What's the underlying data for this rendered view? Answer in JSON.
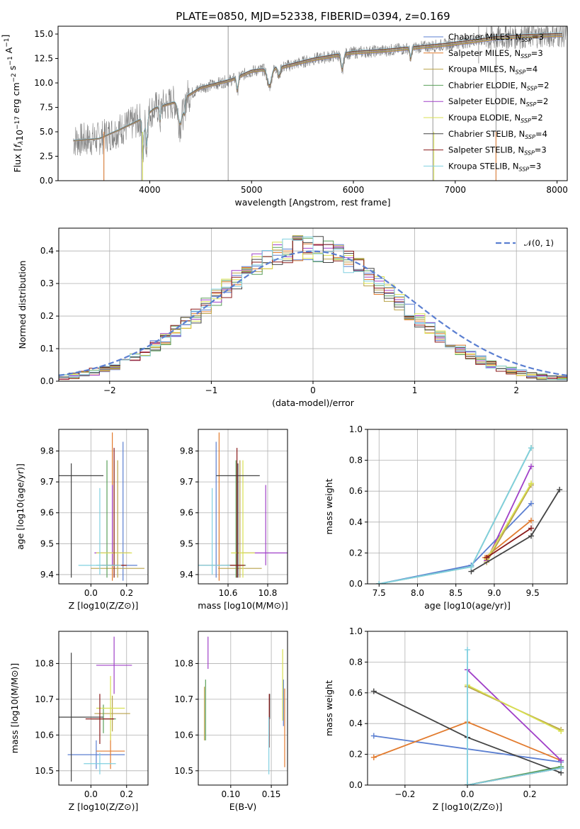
{
  "figure": {
    "title": "PLATE=0850, MJD=52338, FIBERID=0394, z=0.169"
  },
  "palette": [
    {
      "name": "Chabrier MILES",
      "nssp": "3",
      "color": "#5b7fd1"
    },
    {
      "name": "Salpeter MILES",
      "nssp": "3",
      "color": "#e27b2e"
    },
    {
      "name": "Kroupa MILES",
      "nssp": "4",
      "color": "#b9a24a"
    },
    {
      "name": "Chabrier ELODIE",
      "nssp": "2",
      "color": "#5aa05a"
    },
    {
      "name": "Salpeter ELODIE",
      "nssp": "2",
      "color": "#a040c8"
    },
    {
      "name": "Kroupa ELODIE",
      "nssp": "2",
      "color": "#d8e050"
    },
    {
      "name": "Chabrier STELIB",
      "nssp": "4",
      "color": "#444444"
    },
    {
      "name": "Salpeter STELIB",
      "nssp": "3",
      "color": "#8a1a1a"
    },
    {
      "name": "Kroupa STELIB",
      "nssp": "3",
      "color": "#80d0e0"
    }
  ],
  "chart_data": [
    {
      "id": "spectrum",
      "type": "line",
      "xlabel": "wavelength [Angstrom, rest frame]",
      "ylabel": "Flux [f_λ 10^-17 erg cm^-2 s^-1 A^-1]",
      "xlim": [
        3100,
        8100
      ],
      "ylim": [
        0,
        15.8
      ],
      "xticks": [
        4000,
        5000,
        6000,
        7000,
        8000
      ],
      "yticks": [
        "0.0",
        "2.5",
        "5.0",
        "7.5",
        "10.0",
        "12.5",
        "15.0"
      ],
      "grid": false,
      "legend_position": "top-right",
      "legend": [
        "Chabrier MILES, N_SSP=3",
        "Salpeter MILES, N_SSP=3",
        "Kroupa MILES, N_SSP=4",
        "Chabrier ELODIE, N_SSP=2",
        "Salpeter ELODIE, N_SSP=2",
        "Kroupa ELODIE, N_SSP=2",
        "Chabrier STELIB, N_SSP=4",
        "Salpeter STELIB, N_SSP=3",
        "Kroupa STELIB, N_SSP=3"
      ],
      "continuum": [
        [
          3250,
          4.1
        ],
        [
          3500,
          4.3
        ],
        [
          3700,
          5.2
        ],
        [
          3900,
          6.2
        ],
        [
          4050,
          7.4
        ],
        [
          4300,
          8.2
        ],
        [
          4500,
          9.5
        ],
        [
          4800,
          10.3
        ],
        [
          5000,
          11.2
        ],
        [
          5300,
          11.6
        ],
        [
          5600,
          12.4
        ],
        [
          6000,
          13.1
        ],
        [
          6300,
          13.3
        ],
        [
          6600,
          13.6
        ],
        [
          6900,
          13.9
        ],
        [
          7200,
          14.3
        ],
        [
          7400,
          14.6
        ],
        [
          7700,
          14.8
        ],
        [
          8000,
          14.9
        ]
      ]
    },
    {
      "id": "residuals",
      "type": "histogram",
      "xlabel": "(data-model)/error",
      "ylabel": "Normed distribution",
      "xlim": [
        -2.5,
        2.5
      ],
      "ylim": [
        0,
        0.47
      ],
      "xticks": [
        "−2",
        "−1",
        "0",
        "1",
        "2"
      ],
      "yticks": [
        "0.0",
        "0.1",
        "0.2",
        "0.3",
        "0.4"
      ],
      "grid": true,
      "legend_position": "top-right",
      "reference_curve": "𝒩(0, 1)",
      "bin_width": 0.1,
      "bins_left_edge": -2.5
    },
    {
      "id": "age-vs-Z",
      "type": "scatter",
      "xlabel": "Z [log10(Z/Z⊙)]",
      "ylabel": "age  [log10(age/yr)]",
      "xlim": [
        -0.18,
        0.32
      ],
      "ylim": [
        9.37,
        9.87
      ],
      "xticks": [
        "0.0",
        "0.2"
      ],
      "yticks": [
        "9.4",
        "9.5",
        "9.6",
        "9.7",
        "9.8"
      ],
      "grid": true,
      "points": [
        {
          "x": 0.18,
          "y": 9.43,
          "xerr": 0.08,
          "yerr": [
            0.05,
            0.4
          ]
        },
        {
          "x": 0.12,
          "y": 9.43,
          "xerr": 0.07,
          "yerr": [
            0.05,
            0.43
          ]
        },
        {
          "x": 0.15,
          "y": 9.42,
          "xerr": 0.15,
          "yerr": [
            0.03,
            0.35
          ]
        },
        {
          "x": 0.09,
          "y": 9.43,
          "xerr": 0.06,
          "yerr": [
            0.04,
            0.34
          ]
        },
        {
          "x": 0.12,
          "y": 9.47,
          "xerr": 0.1,
          "yerr": [
            0.04,
            0.22
          ]
        },
        {
          "x": 0.13,
          "y": 9.47,
          "xerr": 0.1,
          "yerr": [
            0.08,
            0.3
          ]
        },
        {
          "x": -0.11,
          "y": 9.72,
          "xerr": 0.18,
          "yerr": [
            0.33,
            0.04
          ]
        },
        {
          "x": 0.13,
          "y": 9.43,
          "xerr": 0.07,
          "yerr": [
            0.04,
            0.38
          ]
        },
        {
          "x": 0.05,
          "y": 9.43,
          "xerr": 0.12,
          "yerr": [
            0.03,
            0.25
          ]
        }
      ]
    },
    {
      "id": "age-vs-mass",
      "type": "scatter",
      "xlabel": "mass [log10(M/M⊙)]",
      "ylabel": "",
      "xlim": [
        10.45,
        10.9
      ],
      "ylim": [
        9.37,
        9.87
      ],
      "xticks": [
        "10.6",
        "10.8"
      ],
      "yticks": [
        "9.4",
        "9.5",
        "9.6",
        "9.7",
        "9.8"
      ],
      "grid": true,
      "points": [
        {
          "x": 10.54,
          "y": 9.43,
          "xerr": 0.09,
          "yerr": [
            0.04,
            0.4
          ]
        },
        {
          "x": 10.555,
          "y": 9.43,
          "xerr": 0.1,
          "yerr": [
            0.05,
            0.43
          ]
        },
        {
          "x": 10.66,
          "y": 9.42,
          "xerr": 0.11,
          "yerr": [
            0.03,
            0.35
          ]
        },
        {
          "x": 10.64,
          "y": 9.43,
          "xerr": 0.05,
          "yerr": [
            0.04,
            0.34
          ]
        },
        {
          "x": 10.79,
          "y": 9.47,
          "xerr": 0.12,
          "yerr": [
            0.04,
            0.22
          ]
        },
        {
          "x": 10.675,
          "y": 9.47,
          "xerr": 0.06,
          "yerr": [
            0.08,
            0.3
          ]
        },
        {
          "x": 10.65,
          "y": 9.72,
          "xerr": 0.11,
          "yerr": [
            0.33,
            0.04
          ]
        },
        {
          "x": 10.645,
          "y": 9.43,
          "xerr": 0.04,
          "yerr": [
            0.04,
            0.38
          ]
        },
        {
          "x": 10.52,
          "y": 9.43,
          "xerr": 0.09,
          "yerr": [
            0.03,
            0.25
          ]
        }
      ]
    },
    {
      "id": "weight-vs-age",
      "type": "line",
      "xlabel": "age  [log10(age/yr)]",
      "ylabel": "mass weight",
      "xlim": [
        7.35,
        9.95
      ],
      "ylim": [
        0,
        1.0
      ],
      "xticks": [
        "7.5",
        "8.0",
        "8.5",
        "9.0",
        "9.5"
      ],
      "yticks": [
        "0.0",
        "0.2",
        "0.4",
        "0.6",
        "0.8",
        "1.0"
      ],
      "grid": true,
      "series": [
        {
          "x": [
            7.5,
            8.7,
            9.48
          ],
          "y": [
            0.0,
            0.12,
            0.52
          ]
        },
        {
          "x": [
            8.88,
            9.48
          ],
          "y": [
            0.17,
            0.41
          ]
        },
        {
          "x": [
            8.9,
            9.48
          ],
          "y": [
            0.14,
            0.64
          ]
        },
        {
          "x": [
            7.5,
            8.7,
            9.48
          ],
          "y": [
            0.0,
            0.11,
            0.88
          ]
        },
        {
          "x": [
            8.9,
            9.48
          ],
          "y": [
            0.15,
            0.76
          ]
        },
        {
          "x": [
            8.9,
            9.48
          ],
          "y": [
            0.16,
            0.65
          ]
        },
        {
          "x": [
            8.7,
            9.48,
            9.85
          ],
          "y": [
            0.08,
            0.31,
            0.61
          ]
        },
        {
          "x": [
            8.9,
            9.48
          ],
          "y": [
            0.17,
            0.36
          ]
        },
        {
          "x": [
            7.5,
            8.7,
            9.48
          ],
          "y": [
            0.0,
            0.11,
            0.88
          ]
        }
      ]
    },
    {
      "id": "mass-vs-Z",
      "type": "scatter",
      "xlabel": "Z [log10(Z/Z⊙)]",
      "ylabel": "mass [log10(M/M⊙)]",
      "xlim": [
        -0.18,
        0.32
      ],
      "ylim": [
        10.46,
        10.89
      ],
      "xticks": [
        "0.0",
        "0.2"
      ],
      "yticks": [
        "10.5",
        "10.6",
        "10.7",
        "10.8"
      ],
      "grid": true,
      "points": [
        {
          "x": 0.03,
          "y": 10.545,
          "xerr": 0.16,
          "yerr": 0.04
        },
        {
          "x": 0.11,
          "y": 10.555,
          "xerr": 0.08,
          "yerr": 0.05
        },
        {
          "x": 0.12,
          "y": 10.66,
          "xerr": 0.1,
          "yerr": 0.05
        },
        {
          "x": 0.07,
          "y": 10.645,
          "xerr": 0.07,
          "yerr": 0.04
        },
        {
          "x": 0.13,
          "y": 10.795,
          "xerr": 0.1,
          "yerr": 0.08
        },
        {
          "x": 0.11,
          "y": 10.675,
          "xerr": 0.08,
          "yerr": 0.09
        },
        {
          "x": -0.11,
          "y": 10.65,
          "xerr": 0.18,
          "yerr": 0.18
        },
        {
          "x": 0.05,
          "y": 10.645,
          "xerr": 0.08,
          "yerr": 0.07
        },
        {
          "x": 0.05,
          "y": 10.52,
          "xerr": 0.09,
          "yerr": 0.03
        }
      ]
    },
    {
      "id": "mass-vs-EBV",
      "type": "scatter",
      "xlabel": "E(B-V)",
      "ylabel": "",
      "xlim": [
        0.06,
        0.17
      ],
      "ylim": [
        10.46,
        10.89
      ],
      "xticks": [
        "0.10",
        "0.15"
      ],
      "yticks": [
        "10.5",
        "10.6",
        "10.7",
        "10.8"
      ],
      "grid": true,
      "points": [
        {
          "x": 0.165,
          "y": 10.69,
          "yerr": 0.065
        },
        {
          "x": 0.1665,
          "y": 10.62,
          "yerr": 0.11
        },
        {
          "x": 0.0675,
          "y": 10.66,
          "yerr": 0.075
        },
        {
          "x": 0.069,
          "y": 10.67,
          "yerr": 0.085
        },
        {
          "x": 0.072,
          "y": 10.83,
          "yerr": 0.045
        },
        {
          "x": 0.164,
          "y": 10.74,
          "yerr": 0.1
        },
        {
          "x": 0.148,
          "y": 10.68,
          "yerr": 0.035
        },
        {
          "x": 0.1475,
          "y": 10.64,
          "yerr": 0.075
        },
        {
          "x": 0.147,
          "y": 10.57,
          "yerr": 0.08
        }
      ]
    },
    {
      "id": "weight-vs-Z",
      "type": "line",
      "xlabel": "Z [log10(Z/Z⊙)]",
      "ylabel": "mass weight",
      "xlim": [
        -0.32,
        0.32
      ],
      "ylim": [
        0,
        1.0
      ],
      "xticks": [
        "−0.2",
        "0.0",
        "0.2"
      ],
      "yticks": [
        "0.0",
        "0.2",
        "0.4",
        "0.6",
        "0.8",
        "1.0"
      ],
      "grid": true,
      "series": [
        {
          "x": [
            -0.3,
            0.3
          ],
          "y": [
            0.32,
            0.15
          ]
        },
        {
          "x": [
            -0.3,
            0.0,
            0.3
          ],
          "y": [
            0.18,
            0.41,
            0.16
          ]
        },
        {
          "x": [
            0.0,
            0.3
          ],
          "y": [
            0.64,
            0.36
          ]
        },
        {
          "x": [
            0.0,
            0.3
          ],
          "y": [
            0.0,
            0.12
          ]
        },
        {
          "x": [
            0.0,
            0.3
          ],
          "y": [
            0.75,
            0.16
          ]
        },
        {
          "x": [
            0.0,
            0.3
          ],
          "y": [
            0.65,
            0.35
          ]
        },
        {
          "x": [
            -0.3,
            0.0,
            0.3
          ],
          "y": [
            0.61,
            0.31,
            0.08
          ]
        },
        {
          "x": [
            0.0,
            0.3
          ],
          "y": [
            0.0,
            0.11
          ]
        },
        {
          "x": [
            0.0,
            0.0,
            0.3
          ],
          "y": [
            0.88,
            0.0,
            0.11
          ]
        }
      ]
    }
  ]
}
